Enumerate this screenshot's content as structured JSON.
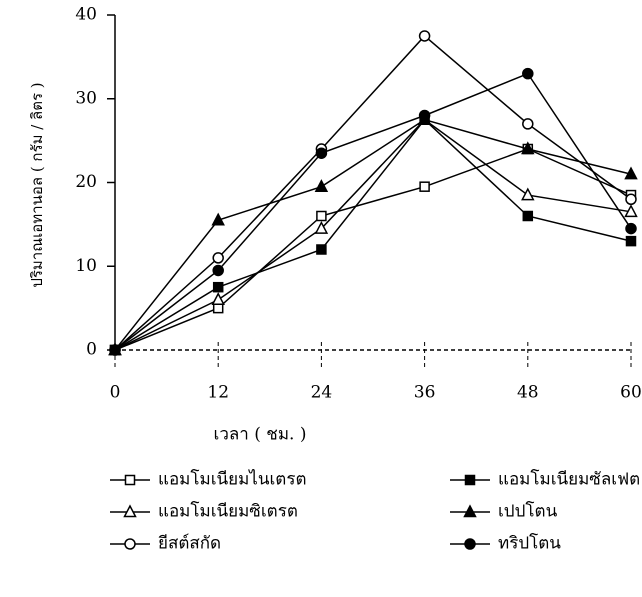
{
  "chart_data": {
    "type": "line",
    "x_label": "เวลา ( ชม. )",
    "y_label": "ปริมาณเอทานอล ( กรัม / ลิตร )",
    "x": [
      0,
      12,
      24,
      36,
      48,
      60
    ],
    "xlim": [
      0,
      60
    ],
    "xticks": [
      0,
      12,
      24,
      36,
      48,
      60
    ],
    "ylim": [
      0,
      40
    ],
    "yticks": [
      0,
      10,
      20,
      30,
      40
    ],
    "series": [
      {
        "name": "แอมโมเนียมไนเตรต",
        "color": "#000000",
        "marker": "square",
        "filled": false,
        "values": [
          0,
          5,
          16,
          19.5,
          24,
          18.5
        ]
      },
      {
        "name": "แอมโมเนียมซัลเฟต",
        "color": "#000000",
        "marker": "square",
        "filled": true,
        "values": [
          0,
          7.5,
          12,
          27.5,
          16,
          13
        ]
      },
      {
        "name": "แอมโมเนียมซิเตรต",
        "color": "#000000",
        "marker": "triangle",
        "filled": false,
        "values": [
          0,
          6,
          14.5,
          27.5,
          18.5,
          16.5
        ]
      },
      {
        "name": "เปปโตน",
        "color": "#000000",
        "marker": "triangle",
        "filled": true,
        "values": [
          0,
          15.5,
          19.5,
          27.5,
          24,
          21
        ]
      },
      {
        "name": "ยีสต์สกัด",
        "color": "#000000",
        "marker": "circle",
        "filled": false,
        "values": [
          0,
          11,
          24,
          37.5,
          27,
          18
        ]
      },
      {
        "name": "ทริปโตน",
        "color": "#000000",
        "marker": "circle",
        "filled": true,
        "values": [
          0,
          9.5,
          23.5,
          28,
          33,
          14.5
        ]
      }
    ]
  }
}
